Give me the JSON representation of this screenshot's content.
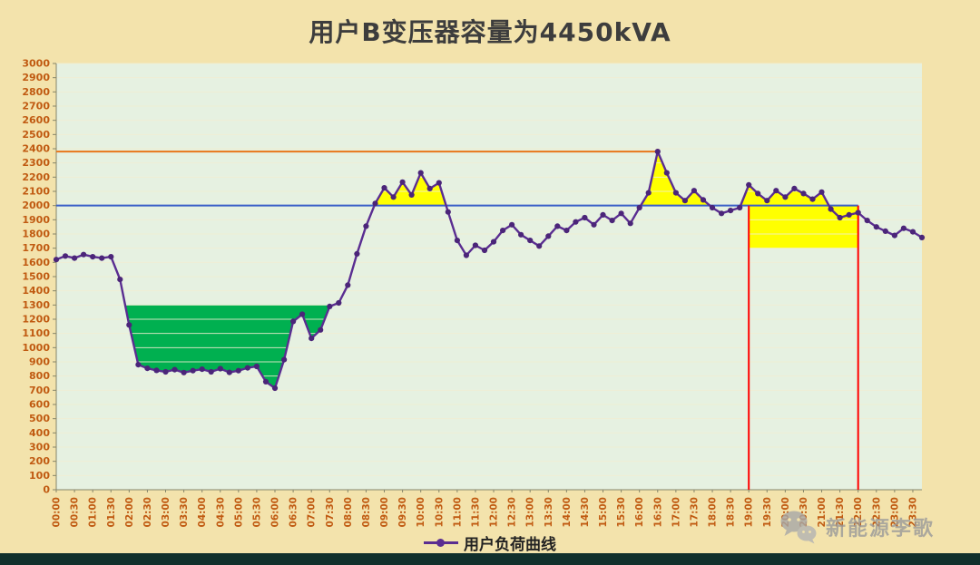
{
  "page": {
    "background": "#f3e3ac",
    "footer_bar_color": "#11302c"
  },
  "watermark": {
    "text": "新能源李歌"
  },
  "chart_data": {
    "type": "line",
    "title": "用户B变压器容量为4450kVA",
    "xlabel": "",
    "ylabel": "",
    "ylim": [
      0,
      3000
    ],
    "ytick_step": 100,
    "grid": true,
    "legend_position": "bottom",
    "plot_bg": "#e6f1e1",
    "grid_color": "#f1eed2",
    "tick_label_color": "#c05a11",
    "interval_minutes_between_points": 15,
    "x_labels": [
      "00:00",
      "00:30",
      "01:00",
      "01:30",
      "02:00",
      "02:30",
      "03:00",
      "03:30",
      "04:00",
      "04:30",
      "05:00",
      "05:30",
      "06:00",
      "06:30",
      "07:00",
      "07:30",
      "08:00",
      "08:30",
      "09:00",
      "09:30",
      "10:00",
      "10:30",
      "11:00",
      "11:30",
      "12:00",
      "12:30",
      "13:00",
      "13:30",
      "14:00",
      "14:30",
      "15:00",
      "15:30",
      "16:00",
      "16:30",
      "17:00",
      "17:30",
      "18:00",
      "18:30",
      "19:00",
      "19:30",
      "20:00",
      "20:30",
      "21:00",
      "21:30",
      "22:00",
      "22:30",
      "23:00",
      "23:30"
    ],
    "series": [
      {
        "name": "用户负荷曲线",
        "color": "#5a2d91",
        "marker_color": "#4b2579",
        "values": [
          1620,
          1645,
          1630,
          1655,
          1640,
          1630,
          1640,
          1480,
          1160,
          880,
          855,
          840,
          830,
          845,
          825,
          838,
          848,
          830,
          852,
          826,
          838,
          858,
          868,
          760,
          715,
          915,
          1185,
          1235,
          1065,
          1125,
          1290,
          1315,
          1440,
          1660,
          1855,
          2015,
          2125,
          2060,
          2165,
          2075,
          2230,
          2120,
          2160,
          1955,
          1755,
          1650,
          1720,
          1685,
          1745,
          1825,
          1865,
          1795,
          1755,
          1715,
          1785,
          1855,
          1825,
          1885,
          1915,
          1865,
          1935,
          1895,
          1945,
          1875,
          1985,
          2090,
          2380,
          2230,
          2090,
          2035,
          2105,
          2040,
          1985,
          1945,
          1965,
          1985,
          2145,
          2085,
          2035,
          2105,
          2060,
          2120,
          2085,
          2045,
          2095,
          1975,
          1915,
          1935,
          1950,
          1895,
          1850,
          1820,
          1790,
          1840,
          1815,
          1775
        ]
      }
    ],
    "reference_lines": [
      {
        "name": "transformer-capacity-line",
        "y": 2380,
        "color": "#e8761b",
        "from_index": 0,
        "to_index": 66
      },
      {
        "name": "demand-limit-line",
        "y": 2000,
        "color": "#3a5fc8",
        "from_index": 0,
        "to_index": 88
      }
    ],
    "vertical_lines": [
      {
        "name": "discharge-start-line",
        "time": "19:00",
        "index": 76,
        "color": "#ff0000",
        "y_from": 0,
        "y_to": 2000
      },
      {
        "name": "discharge-end-line",
        "time": "22:00",
        "index": 88,
        "color": "#ff0000",
        "y_from": 0,
        "y_to": 2000
      }
    ],
    "fills": {
      "valley_fill": {
        "color": "#00B050",
        "level": 1300,
        "mode": "below",
        "meaning": "valley charging area"
      },
      "peak_fill": {
        "color": "#ffff00",
        "level": 2000,
        "mode": "above",
        "meaning": "peak above limit area"
      },
      "discharge_rect": {
        "color": "#ffff00",
        "x_from_index": 76,
        "x_to_index": 88,
        "time_from": "19:00",
        "time_to": "22:00",
        "y_from": 1700,
        "y_to": 2000
      }
    }
  }
}
